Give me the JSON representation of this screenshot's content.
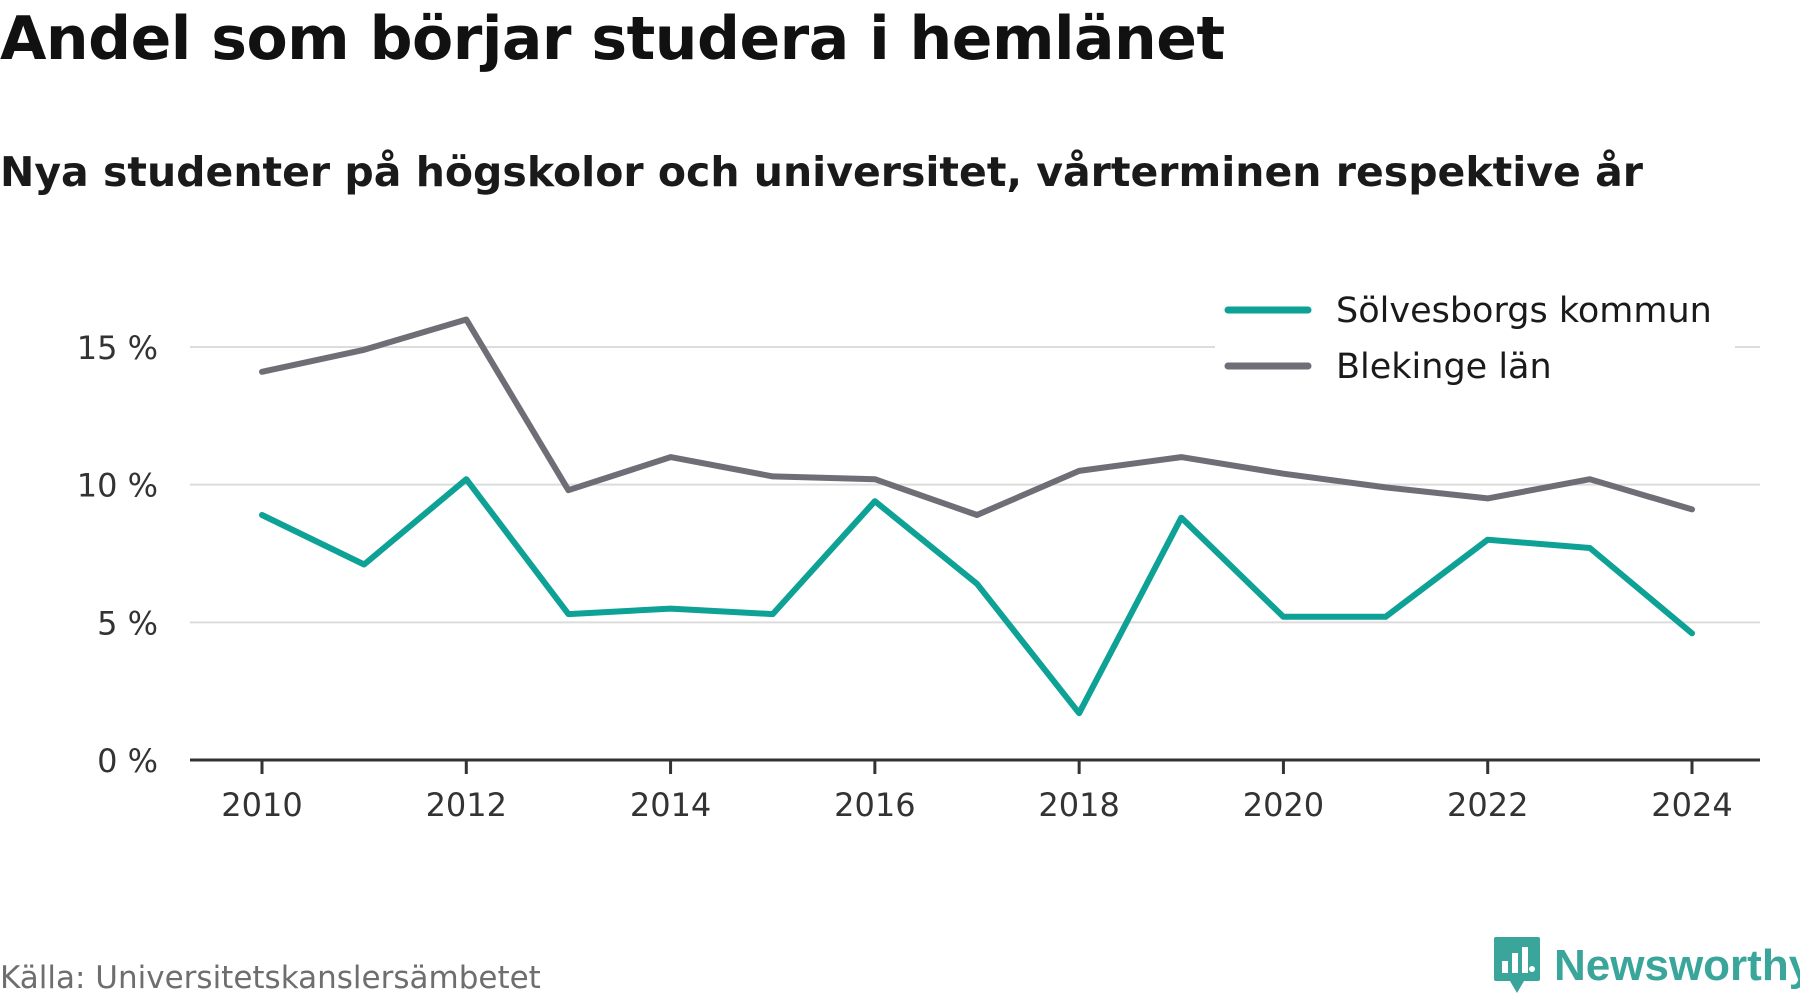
{
  "title": "Andel som börjar studera i hemlänet",
  "subtitle": "Nya studenter på högskolor och universitet, vårterminen respektive år",
  "source": "Källa: Universitetskanslersämbetet",
  "brand": {
    "name": "Newsworthy",
    "icon": "newsworthy-logo-icon",
    "color": "#3aa59a"
  },
  "chart_data": {
    "type": "line",
    "x": [
      2010,
      2011,
      2012,
      2013,
      2014,
      2015,
      2016,
      2017,
      2018,
      2019,
      2020,
      2021,
      2022,
      2023,
      2024
    ],
    "x_ticks": [
      2010,
      2012,
      2014,
      2016,
      2018,
      2020,
      2022,
      2024
    ],
    "x_tick_labels": [
      "2010",
      "2012",
      "2014",
      "2016",
      "2018",
      "2020",
      "2022",
      "2024"
    ],
    "y_ticks": [
      0,
      5,
      10,
      15
    ],
    "y_tick_labels": [
      "0 %",
      "5 %",
      "10 %",
      "15 %"
    ],
    "ylim": [
      0,
      17
    ],
    "grid": true,
    "legend_position": "top-right",
    "series": [
      {
        "name": "Sölvesborgs kommun",
        "color": "#0ea195",
        "values": [
          8.9,
          7.1,
          10.2,
          5.3,
          5.5,
          5.3,
          9.4,
          6.4,
          1.7,
          8.8,
          5.2,
          5.2,
          8.0,
          7.7,
          4.6
        ]
      },
      {
        "name": "Blekinge län",
        "color": "#6f6e76",
        "values": [
          14.1,
          14.9,
          16.0,
          9.8,
          11.0,
          10.3,
          10.2,
          8.9,
          10.5,
          11.0,
          10.4,
          9.9,
          9.5,
          10.2,
          9.1
        ]
      }
    ]
  }
}
